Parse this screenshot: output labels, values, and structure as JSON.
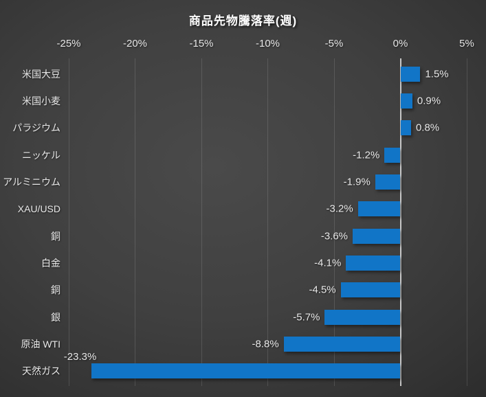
{
  "chart_data": {
    "type": "bar",
    "orientation": "horizontal",
    "title": "商品先物騰落率(週)",
    "categories": [
      "米国大豆",
      "米国小麦",
      "パラジウム",
      "ニッケル",
      "アルミニウム",
      "XAU/USD",
      "銅",
      "白金",
      "銅",
      "銀",
      "原油 WTI",
      "天然ガス"
    ],
    "values": [
      1.5,
      0.9,
      0.8,
      -1.2,
      -1.9,
      -3.2,
      -3.6,
      -4.1,
      -4.5,
      -5.7,
      -8.8,
      -23.3
    ],
    "value_labels": [
      "1.5%",
      "0.9%",
      "0.8%",
      "-1.2%",
      "-1.9%",
      "-3.2%",
      "-3.6%",
      "-4.1%",
      "-4.5%",
      "-5.7%",
      "-8.8%",
      "-23.3%"
    ],
    "x_tick_labels": [
      "-25%",
      "-20%",
      "-15%",
      "-10%",
      "-5%",
      "0%",
      "5%"
    ],
    "x_tick_values": [
      -25,
      -20,
      -15,
      -10,
      -5,
      0,
      5
    ],
    "xlim": [
      -25,
      5
    ],
    "grid": true,
    "legend": false,
    "bar_color": "#1175C7",
    "background_color": "#3d3d3d",
    "text_color": "#e8e8e8",
    "zero_axis_color": "#e1e1e1"
  }
}
